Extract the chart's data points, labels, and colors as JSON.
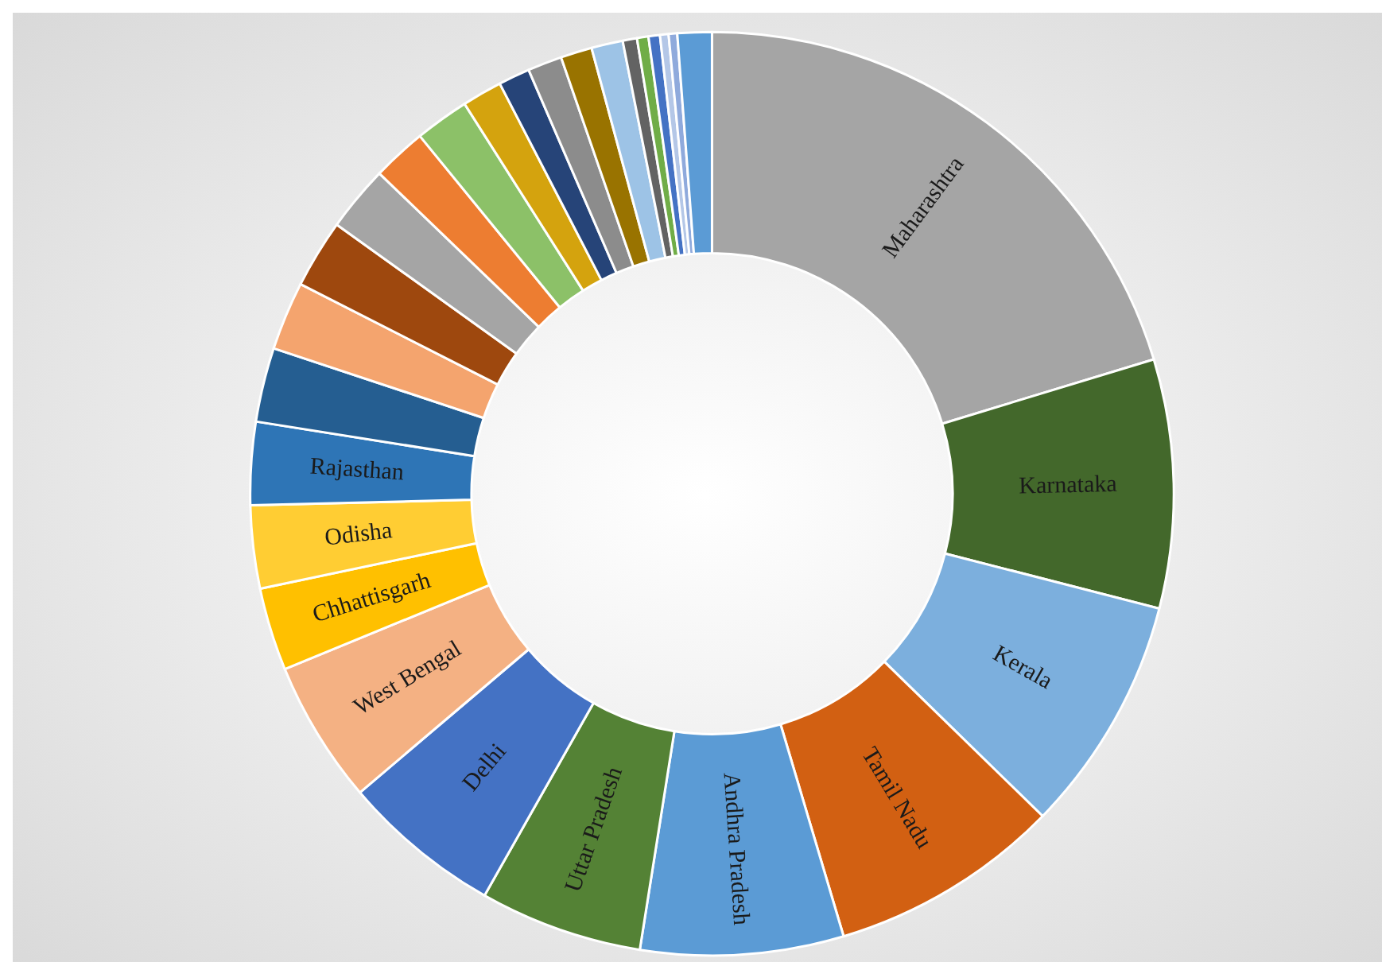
{
  "chart_data": {
    "type": "donut",
    "categories": [
      "Maharashtra",
      "Karnataka",
      "Kerala",
      "Tamil Nadu",
      "Andhra Pradesh",
      "Uttar Pradesh",
      "Delhi",
      "West Bengal",
      "Chhattisgarh",
      "Odisha",
      "Rajasthan",
      null,
      null,
      null,
      null,
      null,
      null,
      null,
      null,
      null,
      null,
      null,
      null,
      null,
      null,
      null,
      null,
      null
    ],
    "values": [
      20.3,
      8.7,
      8.3,
      8.1,
      7.1,
      5.7,
      5.6,
      5.0,
      2.9,
      2.9,
      2.9,
      2.6,
      2.4,
      2.4,
      2.3,
      1.9,
      1.9,
      1.4,
      1.1,
      1.2,
      1.1,
      1.1,
      0.5,
      0.4,
      0.4,
      0.3,
      0.3,
      1.2
    ],
    "colors": [
      "#a5a5a5",
      "#43682b",
      "#7cafdd",
      "#d26012",
      "#5b9bd5",
      "#548235",
      "#4472c4",
      "#f4b183",
      "#ffc000",
      "#ffcd33",
      "#2e75b6",
      "#255e91",
      "#f4a46e",
      "#9e480e",
      "#a5a5a5",
      "#ed7d31",
      "#8cc168",
      "#d4a30e",
      "#264478",
      "#8c8c8c",
      "#997300",
      "#9dc3e6",
      "#636363",
      "#70ad47",
      "#4472c4",
      "#b4c7e7",
      "#8faadc",
      "#5b9bd5"
    ],
    "legend": false
  }
}
